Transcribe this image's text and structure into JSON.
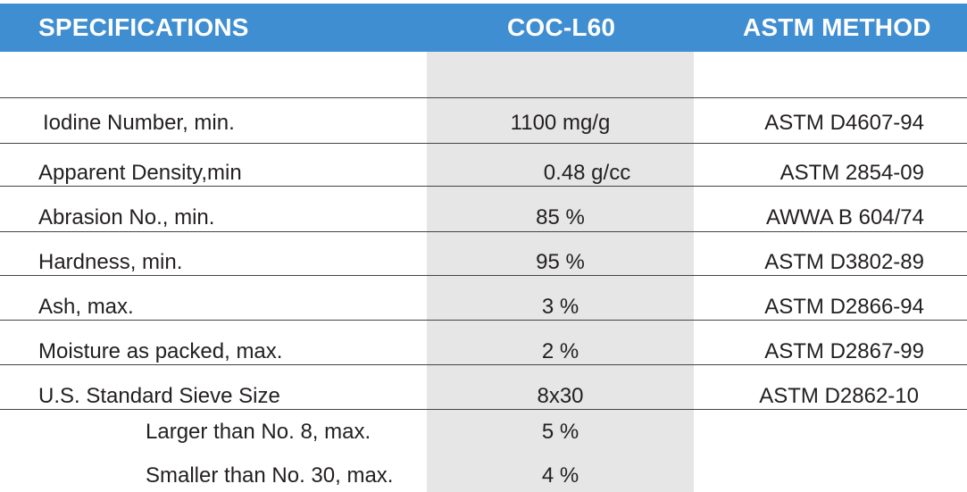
{
  "header": {
    "specifications": "SPECIFICATIONS",
    "product": "COC-L60",
    "method": "ASTM METHOD"
  },
  "rows": [
    {
      "label": "Iodine Number, min.",
      "value": "1100 mg/g",
      "method": "ASTM D4607-94"
    },
    {
      "label": "Apparent Density,min",
      "value": "0.48 g/cc",
      "method": "ASTM 2854-09"
    },
    {
      "label": "Abrasion No., min.",
      "value": "85 %",
      "method": "AWWA B 604/74"
    },
    {
      "label": "Hardness, min.",
      "value": "95 %",
      "method": "ASTM D3802-89"
    },
    {
      "label": "Ash, max.",
      "value": "3 %",
      "method": "ASTM D2866-94"
    },
    {
      "label": "Moisture as packed, max.",
      "value": "2 %",
      "method": "ASTM D2867-99"
    },
    {
      "label": "U.S. Standard Sieve Size",
      "value": "8x30",
      "method": "ASTM D2862-10"
    },
    {
      "label": "Larger than No. 8, max.",
      "value": "5 %",
      "method": ""
    },
    {
      "label": "Smaller than No. 30, max.",
      "value": "4 %",
      "method": ""
    }
  ],
  "colors": {
    "header_bg": "#3f8ed1",
    "column_bg": "#e6e6e6"
  }
}
